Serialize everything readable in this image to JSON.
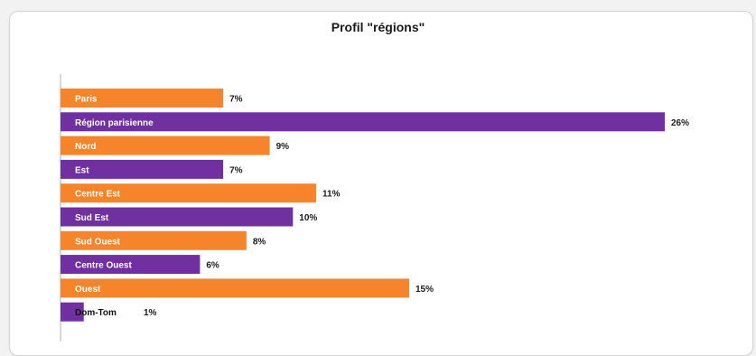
{
  "chart_data": {
    "type": "bar",
    "orientation": "horizontal",
    "title": "Profil \"régions\"",
    "xlabel": "",
    "ylabel": "",
    "xlim": [
      0,
      26
    ],
    "grid": false,
    "legend": "none",
    "categories": [
      "Paris",
      "Région parisienne",
      "Nord",
      "Est",
      "Centre Est",
      "Sud Est",
      "Sud Ouest",
      "Centre Ouest",
      "Ouest",
      "Dom-Tom"
    ],
    "values": [
      7,
      26,
      9,
      7,
      11,
      10,
      8,
      6,
      15,
      1
    ],
    "value_labels": [
      "7%",
      "26%",
      "9%",
      "7%",
      "11%",
      "10%",
      "8%",
      "6%",
      "15%",
      "1%"
    ],
    "colors": [
      "#f5842b",
      "#7030a0",
      "#f5842b",
      "#7030a0",
      "#f5842b",
      "#7030a0",
      "#f5842b",
      "#7030a0",
      "#f5842b",
      "#7030a0"
    ]
  }
}
